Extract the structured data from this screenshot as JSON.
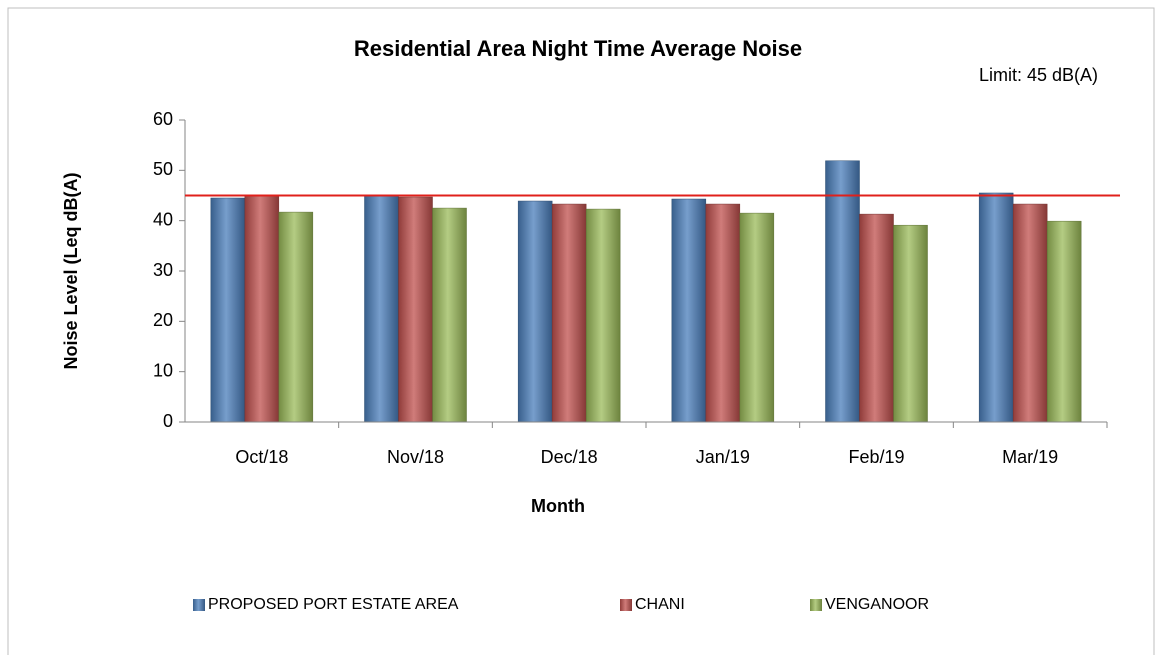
{
  "chart_data": {
    "type": "bar",
    "title": "Residential Area Night Time Average Noise",
    "annotation": "Limit: 45 dB(A)",
    "limit": 45,
    "limit_color": "#e0201b",
    "x_label": "Month",
    "y_label": "Noise Level (Leq dB(A)",
    "categories": [
      "Oct/18",
      "Nov/18",
      "Dec/18",
      "Jan/19",
      "Feb/19",
      "Mar/19"
    ],
    "series": [
      {
        "name": "PROPOSED PORT ESTATE AREA",
        "color": "#4a7ebb",
        "values": [
          44.5,
          45.1,
          43.9,
          44.3,
          51.9,
          45.5
        ]
      },
      {
        "name": "CHANI",
        "color": "#c0504d",
        "values": [
          45.1,
          44.7,
          43.3,
          43.3,
          41.3,
          43.3
        ]
      },
      {
        "name": "VENGANOOR",
        "color": "#9bbb59",
        "values": [
          41.7,
          42.5,
          42.3,
          41.5,
          39.1,
          39.9
        ]
      }
    ],
    "ylim": [
      0,
      60
    ],
    "yticks": [
      0,
      10,
      20,
      30,
      40,
      50,
      60
    ],
    "legend": "bottom"
  }
}
